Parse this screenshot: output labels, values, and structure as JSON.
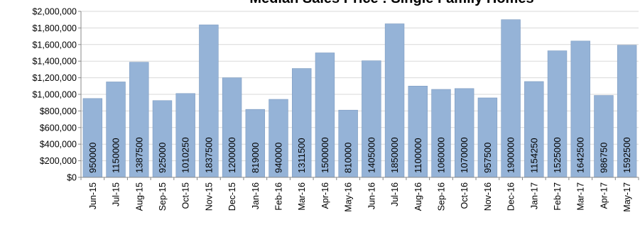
{
  "chart_data": {
    "type": "bar",
    "title": "Median Sales Price : Single Family Homes",
    "categories": [
      "Jun-15",
      "Jul-15",
      "Aug-15",
      "Sep-15",
      "Oct-15",
      "Nov-15",
      "Dec-15",
      "Jan-16",
      "Feb-16",
      "Mar-16",
      "Apr-16",
      "May-16",
      "Jun-16",
      "Jul-16",
      "Aug-16",
      "Sep-16",
      "Oct-16",
      "Nov-16",
      "Dec-16",
      "Jan-17",
      "Feb-17",
      "Mar-17",
      "Apr-17",
      "May-17"
    ],
    "values": [
      950000,
      1150000,
      1387500,
      925000,
      1010250,
      1837500,
      1200000,
      819000,
      940000,
      1311500,
      1500000,
      810000,
      1405000,
      1850000,
      1100000,
      1060000,
      1070000,
      957500,
      1900000,
      1154250,
      1525000,
      1642500,
      986750,
      1592500
    ],
    "ylim": [
      0,
      2000000
    ],
    "yticks": [
      0,
      200000,
      400000,
      600000,
      800000,
      1000000,
      1200000,
      1400000,
      1600000,
      1800000,
      2000000
    ],
    "ytick_labels": [
      "$0",
      "$200,000",
      "$400,000",
      "$600,000",
      "$800,000",
      "$1,000,000",
      "$1,200,000",
      "$1,400,000",
      "$1,600,000",
      "$1,800,000",
      "$2,000,000"
    ],
    "grid": true,
    "legend": false,
    "bar_color": "#95B3D7",
    "bar_border_color": "#7E9CC1",
    "grid_color": "#D9D9D9",
    "axis_color": "#888888"
  }
}
